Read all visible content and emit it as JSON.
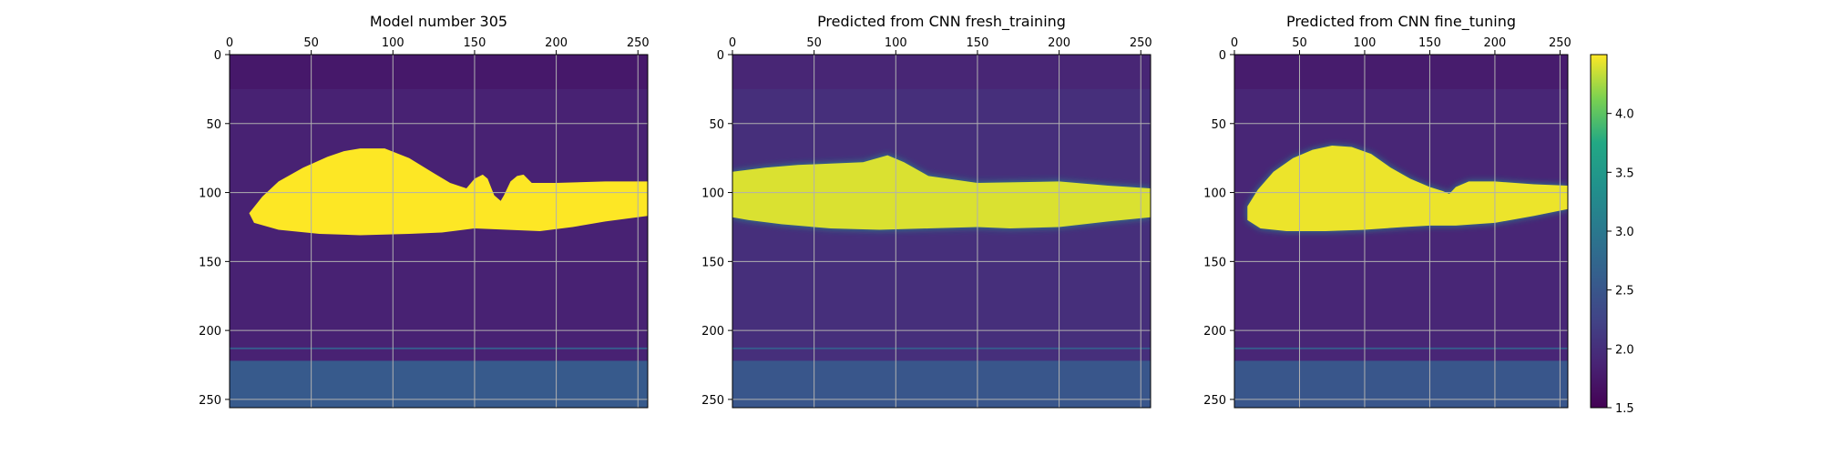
{
  "chart_data": [
    {
      "type": "heatmap",
      "title": "Model number 305",
      "xlim": [
        0,
        256
      ],
      "ylim": [
        256,
        0
      ],
      "x_ticks": [
        0,
        50,
        100,
        150,
        200,
        250
      ],
      "y_ticks": [
        0,
        50,
        100,
        150,
        200,
        250
      ],
      "x_tick_labels": [
        "0",
        "50",
        "100",
        "150",
        "200",
        "250"
      ],
      "y_tick_labels": [
        "0",
        "50",
        "100",
        "150",
        "200",
        "250"
      ],
      "x_axis_position": "top",
      "grid": true,
      "colormap": "viridis",
      "background_value": 1.85,
      "bottom_layer": {
        "from_y": 222,
        "value": 2.55
      },
      "thin_line_y": 213,
      "anomaly": {
        "value": 4.5,
        "top_profile": [
          [
            12,
            115
          ],
          [
            20,
            103
          ],
          [
            30,
            92
          ],
          [
            45,
            82
          ],
          [
            60,
            74
          ],
          [
            70,
            70
          ],
          [
            80,
            68
          ],
          [
            95,
            68
          ],
          [
            110,
            75
          ],
          [
            125,
            86
          ],
          [
            135,
            93
          ],
          [
            145,
            97
          ],
          [
            150,
            90
          ],
          [
            155,
            87
          ],
          [
            158,
            90
          ],
          [
            162,
            102
          ],
          [
            166,
            106
          ],
          [
            168,
            102
          ],
          [
            172,
            92
          ],
          [
            176,
            88
          ],
          [
            180,
            87
          ],
          [
            185,
            93
          ],
          [
            200,
            93
          ],
          [
            230,
            92
          ],
          [
            256,
            92
          ]
        ],
        "bottom_profile": [
          [
            256,
            117
          ],
          [
            230,
            121
          ],
          [
            210,
            125
          ],
          [
            190,
            128
          ],
          [
            170,
            127
          ],
          [
            150,
            126
          ],
          [
            130,
            129
          ],
          [
            110,
            130
          ],
          [
            80,
            131
          ],
          [
            55,
            130
          ],
          [
            30,
            127
          ],
          [
            15,
            122
          ],
          [
            12,
            115
          ]
        ]
      }
    },
    {
      "type": "heatmap",
      "title": "Predicted from CNN fresh_training",
      "xlim": [
        0,
        256
      ],
      "ylim": [
        256,
        0
      ],
      "x_ticks": [
        0,
        50,
        100,
        150,
        200,
        250
      ],
      "y_ticks": [
        0,
        50,
        100,
        150,
        200,
        250
      ],
      "x_tick_labels": [
        "0",
        "50",
        "100",
        "150",
        "200",
        "250"
      ],
      "y_tick_labels": [
        "0",
        "50",
        "100",
        "150",
        "200",
        "250"
      ],
      "x_axis_position": "top",
      "grid": true,
      "colormap": "viridis",
      "background_value": 2.0,
      "bottom_layer": {
        "from_y": 222,
        "value": 2.5
      },
      "thin_line_y": 213,
      "anomaly": {
        "value": 4.4,
        "top_profile": [
          [
            0,
            85
          ],
          [
            20,
            82
          ],
          [
            40,
            80
          ],
          [
            60,
            79
          ],
          [
            80,
            78
          ],
          [
            95,
            73
          ],
          [
            105,
            78
          ],
          [
            120,
            88
          ],
          [
            150,
            93
          ],
          [
            200,
            92
          ],
          [
            230,
            95
          ],
          [
            256,
            97
          ]
        ],
        "bottom_profile": [
          [
            256,
            118
          ],
          [
            230,
            121
          ],
          [
            200,
            125
          ],
          [
            170,
            126
          ],
          [
            150,
            125
          ],
          [
            120,
            126
          ],
          [
            90,
            127
          ],
          [
            60,
            126
          ],
          [
            30,
            123
          ],
          [
            10,
            120
          ],
          [
            0,
            118
          ]
        ]
      }
    },
    {
      "type": "heatmap",
      "title": "Predicted from CNN fine_tuning",
      "xlim": [
        0,
        256
      ],
      "ylim": [
        256,
        0
      ],
      "x_ticks": [
        0,
        50,
        100,
        150,
        200,
        250
      ],
      "y_ticks": [
        0,
        50,
        100,
        150,
        200,
        250
      ],
      "x_tick_labels": [
        "0",
        "50",
        "100",
        "150",
        "200",
        "250"
      ],
      "y_tick_labels": [
        "0",
        "50",
        "100",
        "150",
        "200",
        "250"
      ],
      "x_axis_position": "top",
      "grid": true,
      "colormap": "viridis",
      "background_value": 1.9,
      "bottom_layer": {
        "from_y": 222,
        "value": 2.5
      },
      "thin_line_y": 213,
      "anomaly": {
        "value": 4.45,
        "top_profile": [
          [
            10,
            110
          ],
          [
            18,
            98
          ],
          [
            30,
            85
          ],
          [
            45,
            75
          ],
          [
            60,
            69
          ],
          [
            75,
            66
          ],
          [
            90,
            67
          ],
          [
            105,
            72
          ],
          [
            120,
            82
          ],
          [
            135,
            90
          ],
          [
            150,
            96
          ],
          [
            160,
            99
          ],
          [
            165,
            101
          ],
          [
            170,
            96
          ],
          [
            180,
            92
          ],
          [
            200,
            92
          ],
          [
            230,
            94
          ],
          [
            256,
            95
          ]
        ],
        "bottom_profile": [
          [
            256,
            112
          ],
          [
            230,
            117
          ],
          [
            200,
            122
          ],
          [
            170,
            124
          ],
          [
            150,
            124
          ],
          [
            130,
            125
          ],
          [
            100,
            127
          ],
          [
            70,
            128
          ],
          [
            40,
            128
          ],
          [
            20,
            126
          ],
          [
            10,
            120
          ],
          [
            10,
            110
          ]
        ]
      }
    }
  ],
  "colorbar": {
    "min": 1.5,
    "max": 4.5,
    "ticks": [
      1.5,
      2.0,
      2.5,
      3.0,
      3.5,
      4.0
    ],
    "tick_labels": [
      "1.5",
      "2.0",
      "2.5",
      "3.0",
      "3.5",
      "4.0"
    ]
  }
}
